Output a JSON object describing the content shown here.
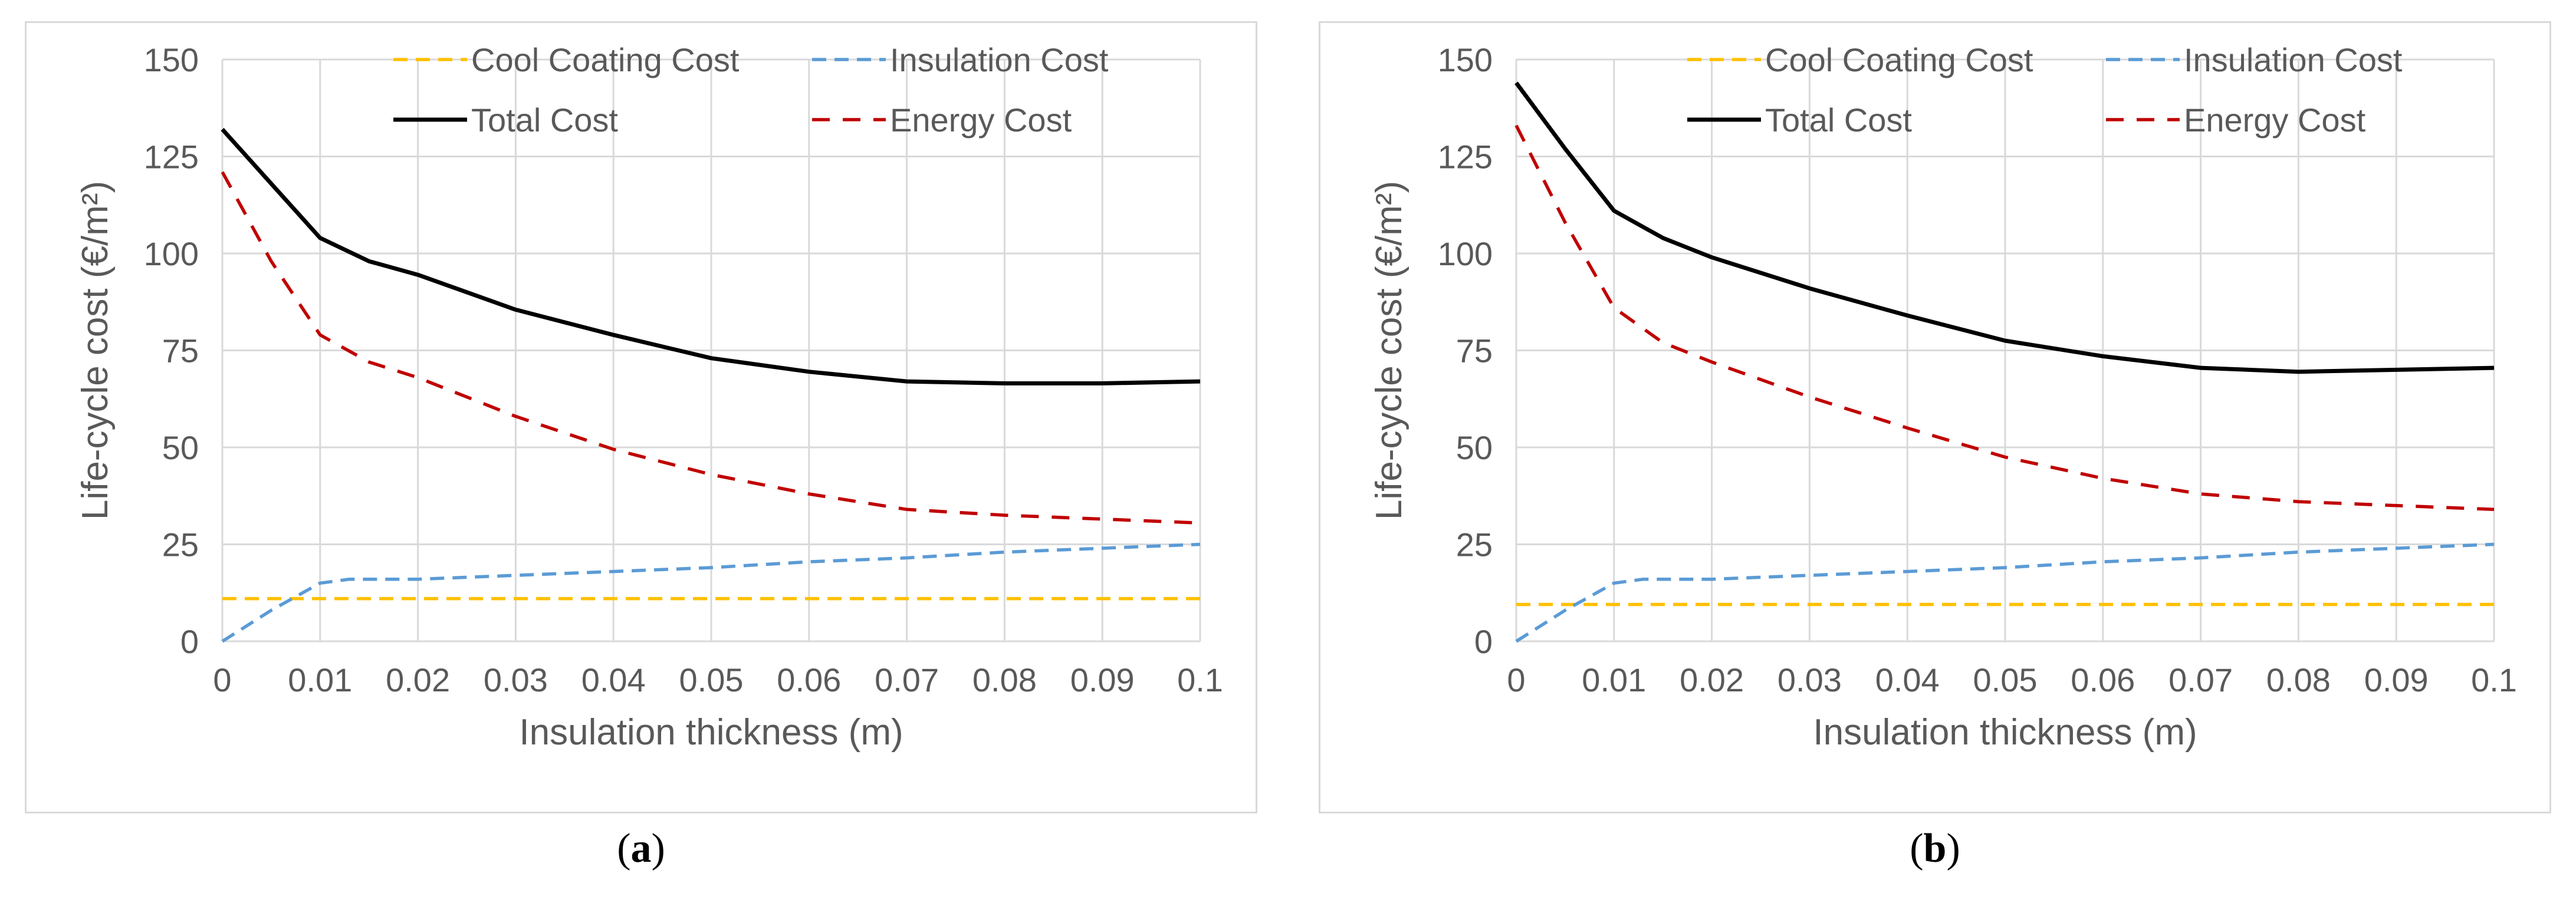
{
  "panels": [
    {
      "label_open": "(",
      "label_letter": "a",
      "label_close": ")"
    },
    {
      "label_open": "(",
      "label_letter": "b",
      "label_close": ")"
    }
  ],
  "chart_data": [
    {
      "type": "line",
      "xlabel": "Insulation thickness (m)",
      "ylabel": "Life-cycle cost (€/m²)",
      "xlim": [
        0,
        0.1
      ],
      "ylim": [
        0,
        150
      ],
      "x_ticks": [
        "0",
        "0.01",
        "0.02",
        "0.03",
        "0.04",
        "0.05",
        "0.06",
        "0.07",
        "0.08",
        "0.09",
        "0.1"
      ],
      "y_ticks": [
        "0",
        "25",
        "50",
        "75",
        "100",
        "125",
        "150"
      ],
      "grid": true,
      "legend_position": "top",
      "series": [
        {
          "name": "Cool Coating Cost",
          "color": "#ffc000",
          "style": "dashed",
          "x": [
            0,
            0.1
          ],
          "y": [
            11,
            11
          ]
        },
        {
          "name": "Insulation Cost",
          "color": "#5b9bd5",
          "style": "dashed",
          "x": [
            0,
            0.005,
            0.01,
            0.013,
            0.02,
            0.03,
            0.04,
            0.05,
            0.06,
            0.07,
            0.08,
            0.09,
            0.1
          ],
          "y": [
            0,
            8,
            15,
            16,
            16,
            17,
            18,
            19,
            20.5,
            21.5,
            23,
            24,
            25
          ]
        },
        {
          "name": "Total Cost",
          "color": "#000000",
          "style": "solid",
          "x": [
            0,
            0.005,
            0.01,
            0.015,
            0.02,
            0.03,
            0.04,
            0.05,
            0.06,
            0.07,
            0.08,
            0.09,
            0.1
          ],
          "y": [
            132,
            118,
            104,
            98,
            94.5,
            85.5,
            79,
            73,
            69.5,
            67,
            66.5,
            66.5,
            67
          ]
        },
        {
          "name": "Energy Cost",
          "color": "#c00000",
          "style": "dashed",
          "x": [
            0,
            0.005,
            0.01,
            0.015,
            0.02,
            0.03,
            0.04,
            0.05,
            0.06,
            0.07,
            0.08,
            0.09,
            0.1
          ],
          "y": [
            121,
            98,
            79,
            72,
            68,
            58,
            49.5,
            43,
            38,
            34,
            32.5,
            31.5,
            30.5
          ]
        }
      ]
    },
    {
      "type": "line",
      "xlabel": "Insulation thickness (m)",
      "ylabel": "Life-cycle cost (€/m²)",
      "xlim": [
        0,
        0.1
      ],
      "ylim": [
        0,
        150
      ],
      "x_ticks": [
        "0",
        "0.01",
        "0.02",
        "0.03",
        "0.04",
        "0.05",
        "0.06",
        "0.07",
        "0.08",
        "0.09",
        "0.1"
      ],
      "y_ticks": [
        "0",
        "25",
        "50",
        "75",
        "100",
        "125",
        "150"
      ],
      "grid": true,
      "legend_position": "top",
      "series": [
        {
          "name": "Cool Coating Cost",
          "color": "#ffc000",
          "style": "dashed",
          "x": [
            0,
            0.1
          ],
          "y": [
            9.5,
            9.5
          ]
        },
        {
          "name": "Insulation Cost",
          "color": "#5b9bd5",
          "style": "dashed",
          "x": [
            0,
            0.005,
            0.01,
            0.013,
            0.02,
            0.03,
            0.04,
            0.05,
            0.06,
            0.07,
            0.08,
            0.09,
            0.1
          ],
          "y": [
            0,
            8,
            15,
            16,
            16,
            17,
            18,
            19,
            20.5,
            21.5,
            23,
            24,
            25
          ]
        },
        {
          "name": "Total Cost",
          "color": "#000000",
          "style": "solid",
          "x": [
            0,
            0.005,
            0.01,
            0.015,
            0.02,
            0.03,
            0.04,
            0.05,
            0.06,
            0.07,
            0.08,
            0.09,
            0.1
          ],
          "y": [
            144,
            127,
            111,
            104,
            99,
            91,
            84,
            77.5,
            73.5,
            70.5,
            69.5,
            70,
            70.5
          ]
        },
        {
          "name": "Energy Cost",
          "color": "#c00000",
          "style": "dashed",
          "x": [
            0,
            0.005,
            0.01,
            0.015,
            0.02,
            0.03,
            0.04,
            0.05,
            0.06,
            0.07,
            0.08,
            0.09,
            0.1
          ],
          "y": [
            133,
            108,
            86,
            77,
            72,
            63,
            55,
            47.5,
            42,
            38,
            36,
            35,
            34
          ]
        }
      ]
    }
  ]
}
